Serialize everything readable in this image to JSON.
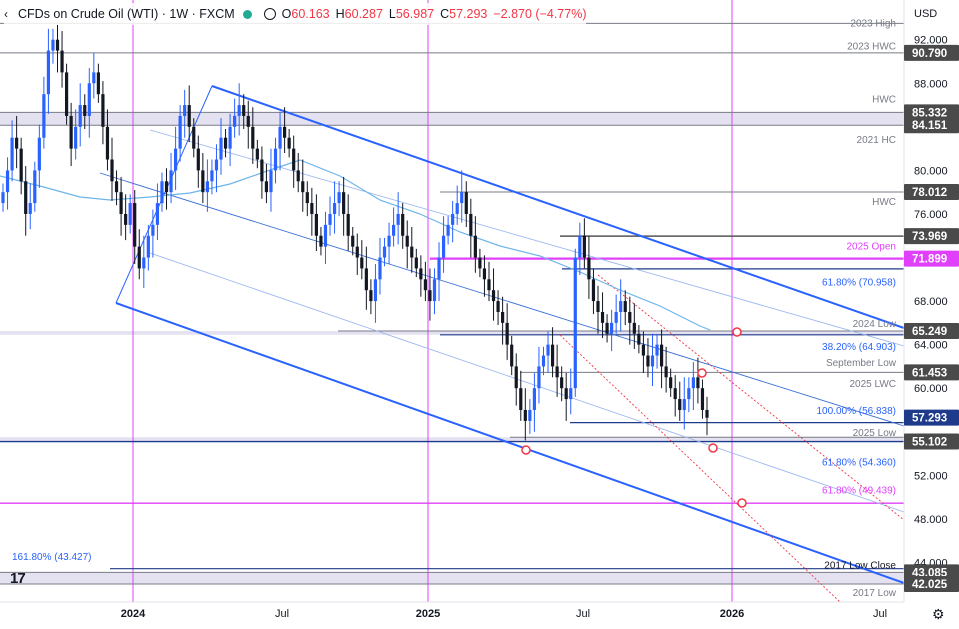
{
  "header": {
    "title": "CFDs on Crude Oil (WTI) · 1W · FXCM",
    "open_label": "O",
    "open": "60.163",
    "high_label": "H",
    "high": "60.287",
    "low_label": "L",
    "low": "56.987",
    "close_label": "C",
    "close": "57.293",
    "change": "−2.870 (−4.77%)"
  },
  "currency": "USD",
  "icons": {
    "collapse": "chevron-left-icon",
    "visibility": "eye-icon",
    "market_status": "green-dot-icon",
    "settings": "gear-icon",
    "logo": "tradingview-logo-icon"
  },
  "colors": {
    "up": "#2962ff",
    "down": "#131722",
    "channel": "#2962ff",
    "magenta": "#e040fb",
    "red": "#f23645",
    "ma": "#6db5e8",
    "band": "#e1dff0"
  },
  "chart_data": {
    "type": "candlestick",
    "title": "CFDs on Crude Oil (WTI) · 1W · FXCM",
    "ylim": [
      40,
      94
    ],
    "y_scale": "linear",
    "grid": false,
    "x_ticks": [
      "2024",
      "Jul",
      "2025",
      "Jul",
      "2026",
      "Jul"
    ],
    "y_ticks": [
      "92.000",
      "88.000",
      "80.000",
      "76.000",
      "68.000",
      "64.000",
      "60.000",
      "52.000",
      "48.000",
      "44.000"
    ],
    "last_bar": {
      "open": 60.163,
      "high": 60.287,
      "low": 56.987,
      "close": 57.293,
      "change": -2.87,
      "change_pct": -4.77
    },
    "horizontal_levels": [
      {
        "name": "2023 High",
        "value": 93.5,
        "tag": ""
      },
      {
        "name": "2023 HWC",
        "value": 90.79,
        "tag": "90.790"
      },
      {
        "name": "HWC",
        "value": 85.332,
        "tag": "85.332"
      },
      {
        "name": "2021 HC",
        "value": 84.151,
        "tag": "84.151"
      },
      {
        "name": "HWC",
        "value": 78.012,
        "tag": "78.012"
      },
      {
        "name": "",
        "value": 73.969,
        "tag": "73.969"
      },
      {
        "name": "2025 Open",
        "value": 71.899,
        "tag": "71.899"
      },
      {
        "name": "61.80% (70.958)",
        "value": 70.958,
        "tag": ""
      },
      {
        "name": "2024 Low",
        "value": 65.5,
        "tag": ""
      },
      {
        "name": "",
        "value": 65.249,
        "tag": "65.249"
      },
      {
        "name": "38.20% (64.903)",
        "value": 64.903,
        "tag": ""
      },
      {
        "name": "September Low",
        "value": 62.5,
        "tag": ""
      },
      {
        "name": "2025 LWC",
        "value": 61.453,
        "tag": "61.453"
      },
      {
        "name": "100.00% (56.838)",
        "value": 56.838,
        "tag": ""
      },
      {
        "name": "",
        "value": 57.293,
        "tag": "57.293"
      },
      {
        "name": "2025 Low",
        "value": 55.5,
        "tag": ""
      },
      {
        "name": "",
        "value": 55.102,
        "tag": "55.102"
      },
      {
        "name": "61.80% (54.360)",
        "value": 54.36,
        "tag": ""
      },
      {
        "name": "61.80% (49.439)",
        "value": 49.439,
        "tag": ""
      },
      {
        "name": "161.80% (43.427)",
        "value": 43.427,
        "tag": ""
      },
      {
        "name": "2017 Low Close",
        "value": 43.085,
        "tag": "43.085"
      },
      {
        "name": "2017 Low",
        "value": 42.025,
        "tag": "42.025"
      }
    ]
  },
  "price_tags": [
    {
      "value": "90.790",
      "bg": "#4a4a4a"
    },
    {
      "value": "85.332",
      "bg": "#4a4a4a"
    },
    {
      "value": "84.151",
      "bg": "#4a4a4a"
    },
    {
      "value": "78.012",
      "bg": "#4a4a4a"
    },
    {
      "value": "73.969",
      "bg": "#4a4a4a"
    },
    {
      "value": "71.899",
      "bg": "#e040fb"
    },
    {
      "value": "65.249",
      "bg": "#4a4a4a"
    },
    {
      "value": "61.453",
      "bg": "#4a4a4a"
    },
    {
      "value": "57.293",
      "bg": "#1e3a8a"
    },
    {
      "value": "55.102",
      "bg": "#4a4a4a"
    },
    {
      "value": "43.085",
      "bg": "#4a4a4a"
    },
    {
      "value": "42.025",
      "bg": "#4a4a4a"
    }
  ],
  "annotations": [
    {
      "text": "2023 High",
      "value": 93.5,
      "color": "#787b86"
    },
    {
      "text": "2023 HWC",
      "value": 91.4,
      "color": "#787b86"
    },
    {
      "text": "HWC",
      "value": 86.5,
      "color": "#787b86"
    },
    {
      "text": "2021 HC",
      "value": 82.8,
      "color": "#787b86"
    },
    {
      "text": "HWC",
      "value": 77.1,
      "color": "#787b86"
    },
    {
      "text": "2025 Open",
      "value": 73.0,
      "color": "#e040fb"
    },
    {
      "text": "61.80% (70.958)",
      "value": 69.7,
      "color": "#2962ff"
    },
    {
      "text": "2024 Low",
      "value": 65.9,
      "color": "#787b86"
    },
    {
      "text": "38.20% (64.903)",
      "value": 63.8,
      "color": "#2962ff"
    },
    {
      "text": "September Low",
      "value": 62.3,
      "color": "#787b86"
    },
    {
      "text": "2025 LWC",
      "value": 60.4,
      "color": "#787b86"
    },
    {
      "text": "100.00% (56.838)",
      "value": 57.9,
      "color": "#2962ff"
    },
    {
      "text": "2025 Low",
      "value": 55.9,
      "color": "#787b86"
    },
    {
      "text": "61.80% (54.360)",
      "value": 53.2,
      "color": "#2962ff"
    },
    {
      "text": "61.80% (49.439)",
      "value": 50.6,
      "color": "#e040fb"
    },
    {
      "text": "161.80% (43.427)",
      "value": 44.5,
      "color": "#2962ff"
    },
    {
      "text": "2017 Low Close",
      "value": 43.7,
      "color": "#131722"
    },
    {
      "text": "2017 Low",
      "value": 41.2,
      "color": "#787b86"
    }
  ]
}
